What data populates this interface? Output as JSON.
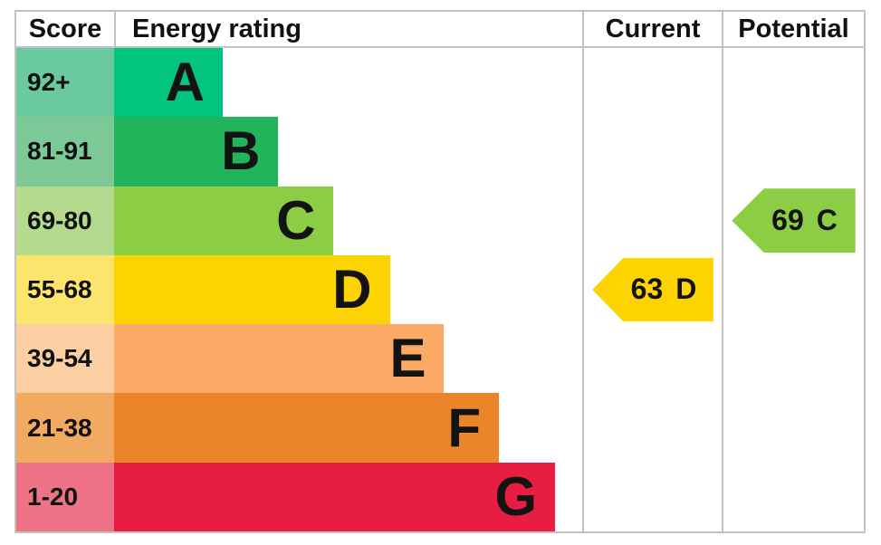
{
  "header": {
    "score_label": "Score",
    "energy_rating_label": "Energy rating",
    "current_label": "Current",
    "potential_label": "Potential"
  },
  "chart_data": {
    "type": "bar",
    "title": "EPC energy efficiency rating chart",
    "columns": [
      "Score",
      "Energy rating",
      "Current",
      "Potential"
    ],
    "bands": [
      {
        "letter": "A",
        "score_range": "92+",
        "bar_color": "#01c47f",
        "score_cell_color": "#6bc9a0",
        "bar_width_pct": 23.2
      },
      {
        "letter": "B",
        "score_range": "81-91",
        "bar_color": "#21b45a",
        "score_cell_color": "#7cc897",
        "bar_width_pct": 35.1
      },
      {
        "letter": "C",
        "score_range": "69-80",
        "bar_color": "#8ccd45",
        "score_cell_color": "#b3da8d",
        "bar_width_pct": 46.9
      },
      {
        "letter": "D",
        "score_range": "55-68",
        "bar_color": "#fdd401",
        "score_cell_color": "#fce46d",
        "bar_width_pct": 58.9
      },
      {
        "letter": "E",
        "score_range": "39-54",
        "bar_color": "#fbaa66",
        "score_cell_color": "#fbcfa2",
        "bar_width_pct": 70.5
      },
      {
        "letter": "F",
        "score_range": "21-38",
        "bar_color": "#eb8529",
        "score_cell_color": "#f2aa61",
        "bar_width_pct": 82.2
      },
      {
        "letter": "G",
        "score_range": "1-20",
        "bar_color": "#e71e41",
        "score_cell_color": "#ee7386",
        "bar_width_pct": 94.2
      }
    ],
    "current": {
      "value": "63",
      "letter": "D",
      "arrow_color": "#fdd401",
      "arrow_direction": "left"
    },
    "potential": {
      "value": "69",
      "letter": "C",
      "arrow_color": "#8ccd45",
      "arrow_direction": "left"
    }
  }
}
